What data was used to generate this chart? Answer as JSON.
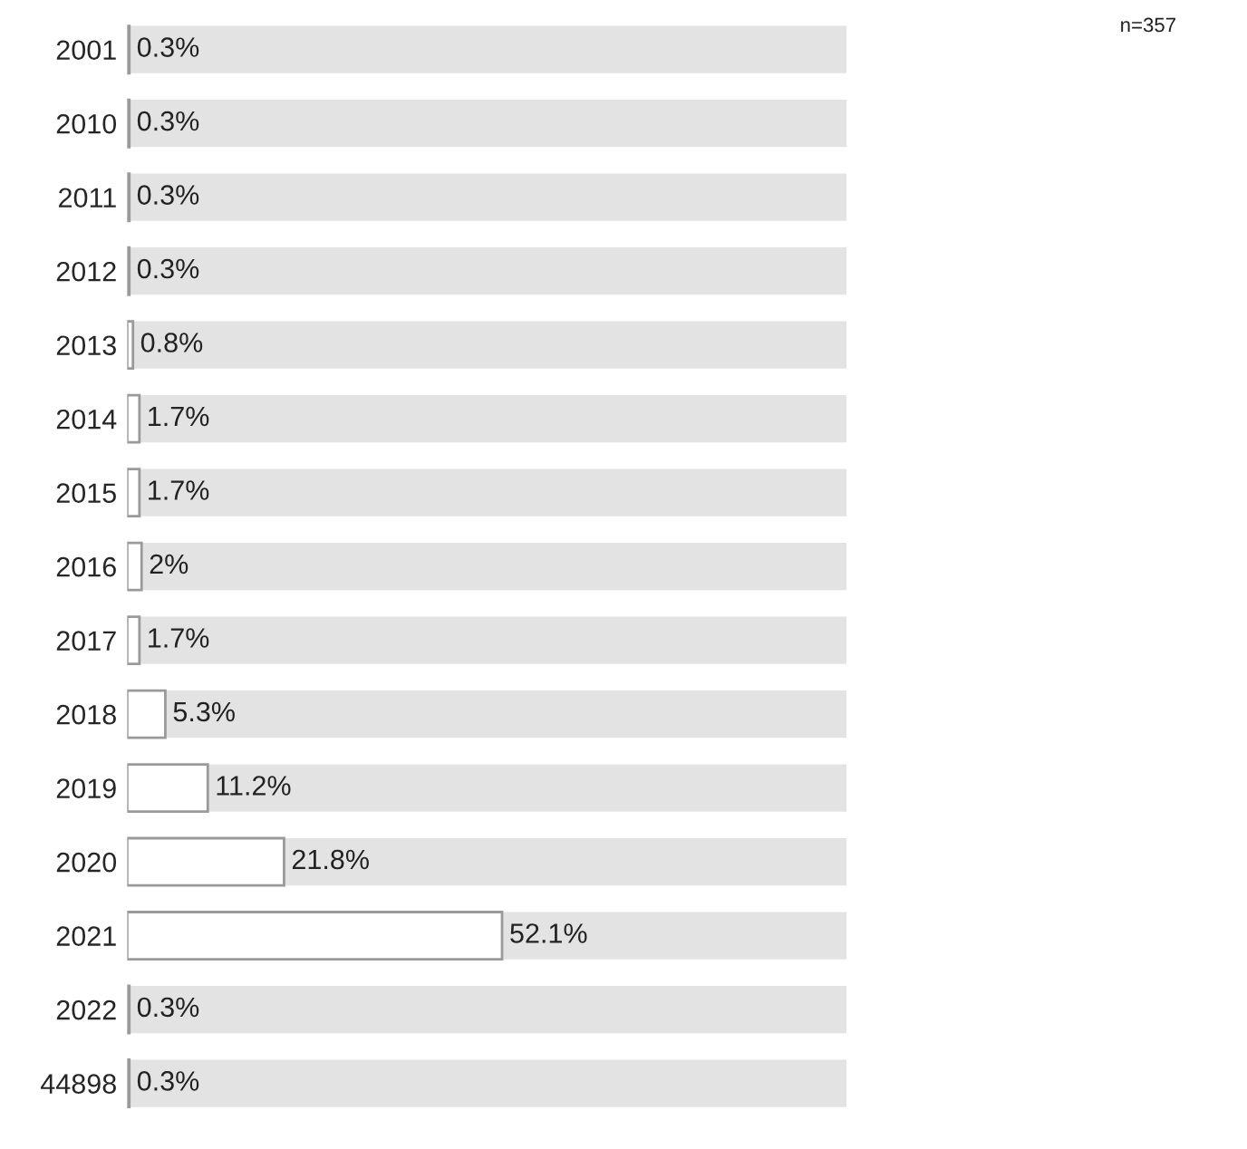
{
  "chart_data": {
    "type": "bar",
    "orientation": "horizontal",
    "categories": [
      "2001",
      "2010",
      "2011",
      "2012",
      "2013",
      "2014",
      "2015",
      "2016",
      "2017",
      "2018",
      "2019",
      "2020",
      "2021",
      "2022",
      "44898"
    ],
    "values": [
      0.3,
      0.3,
      0.3,
      0.3,
      0.8,
      1.7,
      1.7,
      2,
      1.7,
      5.3,
      11.2,
      21.8,
      52.1,
      0.3,
      0.3
    ],
    "value_labels": [
      "0.3%",
      "0.3%",
      "0.3%",
      "0.3%",
      "0.8%",
      "1.7%",
      "1.7%",
      "2%",
      "1.7%",
      "5.3%",
      "11.2%",
      "21.8%",
      "52.1%",
      "0.3%",
      "0.3%"
    ],
    "color": "#ffffff",
    "xlim": [
      0,
      100
    ],
    "tick_labels": "y",
    "grid": false,
    "annotations": [
      "n=357"
    ]
  }
}
